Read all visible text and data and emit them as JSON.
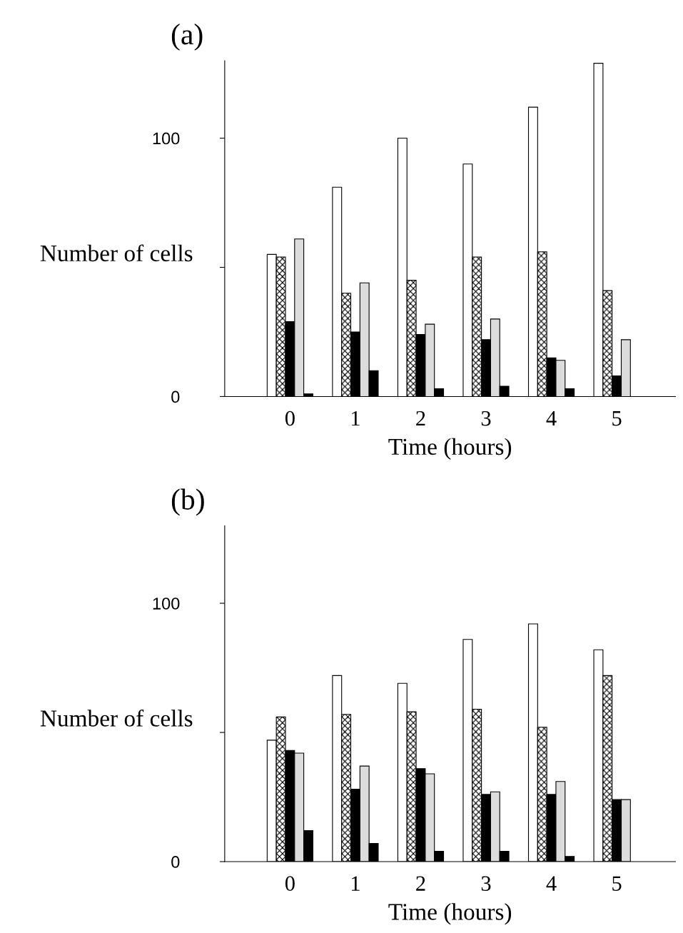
{
  "chart_data": [
    {
      "type": "bar",
      "title": "(a)",
      "xlabel": "Time (hours)",
      "ylabel": "Number of cells",
      "categories": [
        "0",
        "1",
        "2",
        "3",
        "4",
        "5"
      ],
      "ylim": [
        0,
        130
      ],
      "yticks": [
        0,
        {
          "value": 50,
          "label": null
        },
        100
      ],
      "grid": false,
      "legend": false,
      "series": [
        {
          "color": "#ffffff",
          "values": [
            55,
            81,
            100,
            90,
            112,
            129
          ]
        },
        {
          "color": "#000000",
          "values": [
            54,
            40,
            45,
            54,
            56,
            41
          ]
        },
        {
          "color": "#000000",
          "values": [
            29,
            25,
            24,
            22,
            15,
            8
          ]
        },
        {
          "color": "#dcdcdc",
          "values": [
            61,
            44,
            28,
            30,
            14,
            22
          ]
        },
        {
          "color": "#000000",
          "values": [
            1,
            10,
            3,
            4,
            3,
            null
          ]
        }
      ]
    },
    {
      "type": "bar",
      "title": "(b)",
      "xlabel": "Time (hours)",
      "ylabel": "Number of cells",
      "categories": [
        "0",
        "1",
        "2",
        "3",
        "4",
        "5"
      ],
      "ylim": [
        0,
        130
      ],
      "yticks": [
        0,
        {
          "value": 50,
          "label": null
        },
        100
      ],
      "grid": false,
      "legend": false,
      "series": [
        {
          "color": "#ffffff",
          "values": [
            47,
            72,
            69,
            86,
            92,
            82
          ]
        },
        {
          "color": "#000000",
          "values": [
            56,
            57,
            58,
            59,
            52,
            72
          ]
        },
        {
          "color": "#000000",
          "values": [
            43,
            28,
            36,
            26,
            26,
            24
          ]
        },
        {
          "color": "#dcdcdc",
          "values": [
            42,
            37,
            34,
            27,
            31,
            24
          ]
        },
        {
          "color": "#000000",
          "values": [
            12,
            7,
            4,
            4,
            2,
            null
          ]
        }
      ]
    }
  ]
}
